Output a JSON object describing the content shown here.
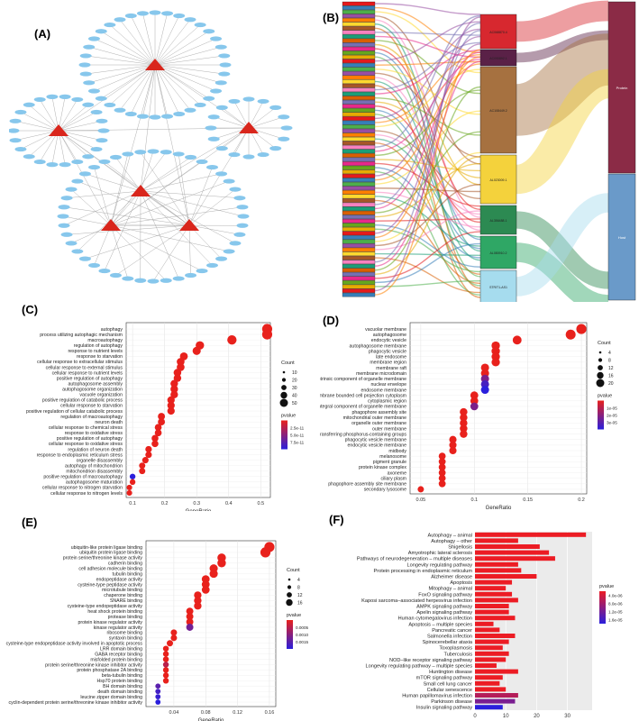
{
  "panel_labels": {
    "a": "(A)",
    "b": "(B)",
    "c": "(C)",
    "d": "(D)",
    "e": "(E)",
    "f": "(F)"
  },
  "colors": {
    "network_node": "#87c7ec",
    "network_hub": "#d9261c",
    "dot_high": "#e8211c",
    "dot_low": "#2a1fdc",
    "bar_fill": "#ec1c24"
  },
  "sankey": {
    "categories": [
      "Protein",
      "Host"
    ],
    "lncrnas": [
      "AC068870.4",
      "AC090892.1",
      "AC108449.2",
      "AL023009.1",
      "AL356488.1",
      "AL080910.2",
      "STRIT1-AS1"
    ]
  },
  "chart_data": [
    {
      "panel": "C",
      "type": "scatter",
      "title": "",
      "xlabel": "GeneRatio",
      "ylabel": "",
      "xlim": [
        0.08,
        0.53
      ],
      "xticks": [
        0.1,
        0.2,
        0.3,
        0.4,
        0.5
      ],
      "legend": {
        "count_title": "Count",
        "count_values": [
          "10",
          "20",
          "30",
          "40",
          "50"
        ],
        "pvalue_title": "pvalue",
        "pvalue_ticks": [
          "2.5e-11",
          "5.0e-11",
          "7.5e-11"
        ]
      },
      "categories": [
        "autophagy",
        "process utilizing autophagic mechanism",
        "macroautophagy",
        "regulation of autophagy",
        "response to nutrient levels",
        "response to starvation",
        "cellular response to extracellular stimulus",
        "cellular response to external stimulus",
        "cellular response to nutrient levels",
        "positive regulation of autophagy",
        "autophagosome assembly",
        "autophagosome organization",
        "vacuole organization",
        "positive regulation of catabolic process",
        "cellular response to starvation",
        "positive regulation of cellular catabolic process",
        "regulation of macroautophagy",
        "neuron death",
        "cellular response to chemical stress",
        "response to oxidative stress",
        "positive regulation of autophagy",
        "cellular response to oxidative stress",
        "regulation of neuron death",
        "response to endoplasmic reticulum stress",
        "organelle disassembly",
        "autophagy of mitochondrion",
        "mitochondrion disassembly",
        "positive regulation of macroautophagy",
        "autophagosome maturation",
        "cellular response to nitrogen starvation",
        "cellular response to nitrogen levels"
      ],
      "values": [
        0.52,
        0.52,
        0.41,
        0.31,
        0.3,
        0.26,
        0.25,
        0.25,
        0.24,
        0.24,
        0.23,
        0.23,
        0.23,
        0.22,
        0.22,
        0.22,
        0.19,
        0.19,
        0.18,
        0.18,
        0.17,
        0.17,
        0.15,
        0.15,
        0.14,
        0.13,
        0.13,
        0.1,
        0.1,
        0.09,
        0.09
      ],
      "sizes": [
        50,
        50,
        40,
        30,
        28,
        25,
        24,
        24,
        23,
        22,
        22,
        22,
        22,
        21,
        21,
        21,
        18,
        18,
        17,
        17,
        16,
        16,
        14,
        14,
        13,
        12,
        12,
        9,
        9,
        8,
        8
      ],
      "pvalues": [
        1e-12,
        1e-12,
        1e-12,
        1e-12,
        1e-12,
        1e-12,
        1e-12,
        1e-12,
        1e-12,
        1e-12,
        1e-12,
        1e-12,
        1e-12,
        1e-12,
        1e-12,
        1e-12,
        1e-12,
        1e-12,
        1e-12,
        1e-12,
        1e-12,
        1e-12,
        1e-12,
        1e-12,
        1e-12,
        1e-12,
        1e-12,
        8e-11,
        1e-12,
        1e-12,
        1e-12
      ]
    },
    {
      "panel": "D",
      "type": "scatter",
      "title": "",
      "xlabel": "GeneRatio",
      "ylabel": "",
      "xlim": [
        0.04,
        0.205
      ],
      "xticks": [
        0.05,
        0.1,
        0.15,
        0.2
      ],
      "legend": {
        "count_title": "Count",
        "count_values": [
          "4",
          "8",
          "12",
          "16",
          "20"
        ],
        "pvalue_title": "pvalue",
        "pvalue_ticks": [
          "1e-05",
          "2e-05",
          "3e-05"
        ]
      },
      "categories": [
        "vacuolar membrane",
        "autophagosome",
        "endocytic vesicle",
        "autophagosome membrane",
        "phagocytic vesicle",
        "late endosome",
        "membrane region",
        "membrane raft",
        "membrane microdomain",
        "intrinsic component of organelle membrane",
        "nuclear envelope",
        "endosome membrane",
        "plasma membrane bounded cell projection cytoplasm",
        "cytoplasmic region",
        "integral component of organelle membrane",
        "phagophore assembly site",
        "mitochondrial outer membrane",
        "organelle outer membrane",
        "outer membrane",
        "transferase complex, transferring phosphorus-containing groups",
        "phagocytic vesicle membrane",
        "endocytic vesicle membrane",
        "midbody",
        "melanosome",
        "pigment granule",
        "protein kinase complex",
        "axoneme",
        "ciliary plasm",
        "phagophore assembly site membrane",
        "secondary lysosome"
      ],
      "values": [
        0.2,
        0.19,
        0.14,
        0.12,
        0.12,
        0.12,
        0.12,
        0.11,
        0.11,
        0.11,
        0.11,
        0.11,
        0.1,
        0.1,
        0.1,
        0.09,
        0.09,
        0.09,
        0.09,
        0.09,
        0.08,
        0.08,
        0.08,
        0.07,
        0.07,
        0.07,
        0.07,
        0.07,
        0.07,
        0.05
      ],
      "sizes": [
        20,
        19,
        14,
        12,
        12,
        12,
        12,
        11,
        11,
        11,
        11,
        11,
        10,
        10,
        10,
        9,
        9,
        9,
        9,
        9,
        8,
        8,
        8,
        7,
        7,
        7,
        7,
        7,
        7,
        5
      ],
      "pvalues": [
        1e-07,
        1e-07,
        1e-07,
        1e-07,
        1e-07,
        1e-07,
        1e-07,
        1e-07,
        1e-07,
        2e-05,
        3e-05,
        3.5e-05,
        1e-07,
        1e-07,
        2e-05,
        1e-07,
        1e-07,
        1e-07,
        1e-07,
        1e-07,
        1e-07,
        1e-07,
        1e-07,
        1e-07,
        1e-07,
        1e-07,
        1e-07,
        1e-07,
        1e-07,
        1e-07
      ]
    },
    {
      "panel": "E",
      "type": "scatter",
      "title": "",
      "xlabel": "GeneRatio",
      "ylabel": "",
      "xlim": [
        0.005,
        0.168
      ],
      "xticks": [
        0.04,
        0.08,
        0.12,
        0.16
      ],
      "legend": {
        "count_title": "Count",
        "count_values": [
          "4",
          "8",
          "12",
          "16"
        ],
        "pvalue_title": "pvalue",
        "pvalue_ticks": [
          "0.0005",
          "0.0010",
          "0.0015"
        ]
      },
      "categories": [
        "ubiquitin-like protein ligase binding",
        "ubiquitin protein ligase binding",
        "protein serine/threonine kinase activity",
        "cadherin binding",
        "cell adhesion molecule binding",
        "tubulin binding",
        "endopeptidase activity",
        "cysteine-type peptidase activity",
        "microtubule binding",
        "chaperone binding",
        "SNARE binding",
        "cysteine-type endopeptidase activity",
        "heat shock protein binding",
        "protease binding",
        "protein kinase regulator activity",
        "kinase regulator activity",
        "ribosome binding",
        "syntaxin binding",
        "cysteine-type endopeptidase activity involved in apoptotic process",
        "LRR domain binding",
        "GABA receptor binding",
        "misfolded protein binding",
        "protein serine/threonine kinase inhibitor activity",
        "protein phosphatase 2A binding",
        "beta-tubulin binding",
        "Hsp70 protein binding",
        "BH domain binding",
        "death domain binding",
        "leucine zipper domain binding",
        "cyclin-dependent protein serine/threonine kinase inhibitor activity"
      ],
      "values": [
        0.16,
        0.155,
        0.1,
        0.1,
        0.09,
        0.09,
        0.08,
        0.08,
        0.08,
        0.07,
        0.07,
        0.07,
        0.06,
        0.06,
        0.06,
        0.06,
        0.04,
        0.04,
        0.035,
        0.03,
        0.03,
        0.03,
        0.03,
        0.03,
        0.03,
        0.03,
        0.02,
        0.02,
        0.02,
        0.02
      ],
      "sizes": [
        16,
        16,
        10,
        10,
        9,
        9,
        8,
        8,
        8,
        7,
        7,
        7,
        6,
        6,
        6,
        6,
        4,
        4,
        4,
        3,
        3,
        3,
        3,
        3,
        3,
        3,
        2,
        2,
        2,
        2
      ],
      "pvalues": [
        1e-05,
        1e-05,
        1e-05,
        1e-05,
        1e-05,
        1e-05,
        1e-05,
        1e-05,
        1e-05,
        1e-05,
        1e-05,
        1e-05,
        1e-05,
        1e-05,
        1e-05,
        0.001,
        1e-05,
        1e-05,
        1e-05,
        1e-05,
        1e-05,
        1e-05,
        0.0004,
        1e-05,
        1e-05,
        1e-05,
        0.0012,
        0.0014,
        0.0015,
        0.0016
      ]
    },
    {
      "panel": "F",
      "type": "bar",
      "title": "",
      "xlabel": "",
      "ylabel": "",
      "xlim": [
        0,
        38
      ],
      "xticks": [
        0,
        10,
        20,
        30
      ],
      "legend": {
        "pvalue_title": "pvalue",
        "pvalue_ticks": [
          "4.0e-06",
          "8.0e-06",
          "1.2e-05",
          "1.6e-05"
        ]
      },
      "categories": [
        "Autophagy – animal",
        "Autophagy – other",
        "Shigellosis",
        "Amyotrophic lateral sclerosis",
        "Pathways of neurodegeneration – multiple diseases",
        "Longevity regulating pathway",
        "Protein processing in endoplasmic reticulum",
        "Alzheimer disease",
        "Apoptosis",
        "Mitophagy – animal",
        "FoxO signaling pathway",
        "Kaposi sarcoma–associated herpesvirus infection",
        "AMPK signaling pathway",
        "Apelin signaling pathway",
        "Human cytomegalovirus infection",
        "Apoptosis – multiple species",
        "Pancreatic cancer",
        "Salmonella infection",
        "Spinocerebellar ataxia",
        "Toxoplasmosis",
        "Tuberculosis",
        "NOD–like receptor signaling pathway",
        "Longevity regulating pathway – multiple species",
        "Huntington disease",
        "mTOR signaling pathway",
        "Small cell lung cancer",
        "Cellular senescence",
        "Human papillomavirus infection",
        "Parkinson disease",
        "Insulin signaling pathway"
      ],
      "values": [
        36,
        14,
        21,
        24,
        26,
        14,
        15,
        20,
        12,
        10,
        12,
        14,
        11,
        11,
        13,
        6,
        8,
        13,
        11,
        9,
        11,
        10,
        7,
        14,
        9,
        8,
        10,
        14,
        13,
        9
      ],
      "pvalues": [
        1e-07,
        1e-07,
        1e-07,
        1e-07,
        1e-07,
        1e-07,
        1e-07,
        1e-07,
        1e-07,
        1e-07,
        1e-07,
        1e-07,
        1e-07,
        1e-07,
        1e-07,
        1e-07,
        1e-07,
        1e-07,
        1e-07,
        1e-07,
        1e-07,
        1e-07,
        1e-07,
        1e-07,
        1e-07,
        1e-07,
        1e-07,
        5e-06,
        1e-05,
        1.7e-05
      ]
    }
  ]
}
